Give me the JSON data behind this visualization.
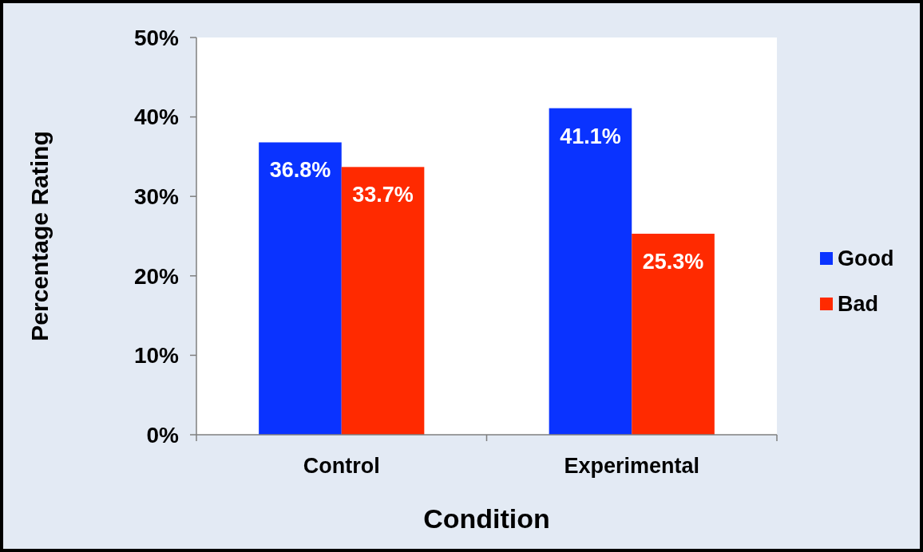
{
  "chart_data": {
    "type": "bar",
    "xlabel": "Condition",
    "ylabel": "Percentage Rating",
    "categories": [
      "Control",
      "Experimental"
    ],
    "series": [
      {
        "name": "Good",
        "color": "#0a33ff",
        "values": [
          36.8,
          41.1
        ],
        "value_labels": [
          "36.8%",
          "41.1%"
        ]
      },
      {
        "name": "Bad",
        "color": "#ff2a00",
        "values": [
          33.7,
          25.3
        ],
        "value_labels": [
          "33.7%",
          "25.3%"
        ]
      }
    ],
    "ylim": [
      0,
      50
    ],
    "yticks": [
      {
        "value": 0,
        "label": "0%"
      },
      {
        "value": 10,
        "label": "10%"
      },
      {
        "value": 20,
        "label": "20%"
      },
      {
        "value": 30,
        "label": "30%"
      },
      {
        "value": 40,
        "label": "40%"
      },
      {
        "value": 50,
        "label": "50%"
      }
    ],
    "grid": false,
    "legend": "right"
  }
}
